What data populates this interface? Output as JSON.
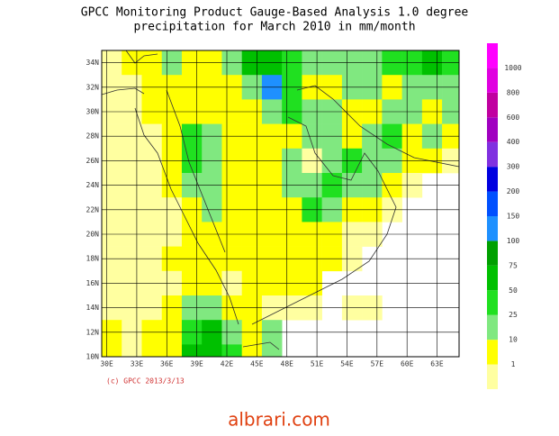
{
  "chart_data": {
    "type": "heatmap",
    "title": "GPCC Monitoring Product Gauge-Based Analysis 1.0 degree",
    "subtitle": "precipitation for March  2010 in mm/month",
    "copyright": "(c) GPCC 2013/3/13",
    "watermark": "albrari.com",
    "xlim": [
      29.5,
      65.2
    ],
    "ylim": [
      10,
      35
    ],
    "xticks": [
      {
        "value": 30,
        "label": "30E"
      },
      {
        "value": 33,
        "label": "33E"
      },
      {
        "value": 36,
        "label": "36E"
      },
      {
        "value": 39,
        "label": "39E"
      },
      {
        "value": 42,
        "label": "42E"
      },
      {
        "value": 45,
        "label": "45E"
      },
      {
        "value": 48,
        "label": "48E"
      },
      {
        "value": 51,
        "label": "51E"
      },
      {
        "value": 54,
        "label": "54E"
      },
      {
        "value": 57,
        "label": "57E"
      },
      {
        "value": 60,
        "label": "60E"
      },
      {
        "value": 63,
        "label": "63E"
      }
    ],
    "yticks": [
      {
        "value": 10,
        "label": "10N"
      },
      {
        "value": 12,
        "label": "12N"
      },
      {
        "value": 14,
        "label": "14N"
      },
      {
        "value": 16,
        "label": "16N"
      },
      {
        "value": 18,
        "label": "18N"
      },
      {
        "value": 20,
        "label": "20N"
      },
      {
        "value": 22,
        "label": "22N"
      },
      {
        "value": 24,
        "label": "24N"
      },
      {
        "value": 26,
        "label": "26N"
      },
      {
        "value": 28,
        "label": "28N"
      },
      {
        "value": 30,
        "label": "30N"
      },
      {
        "value": 32,
        "label": "32N"
      },
      {
        "value": 34,
        "label": "34N"
      }
    ],
    "grid": true,
    "lon_bins": [
      29.5,
      31.5,
      33.5,
      35.5,
      37.5,
      39.5,
      41.5,
      43.5,
      45.5,
      47.5,
      49.5,
      51.5,
      53.5,
      55.5,
      57.5,
      59.5,
      61.5,
      63.5,
      65.5
    ],
    "lat_bins": [
      35,
      33,
      31,
      29,
      27,
      25,
      23,
      21,
      19,
      17,
      15,
      13,
      11,
      9
    ],
    "z": [
      [
        0.5,
        5,
        5,
        15,
        5,
        5,
        15,
        60,
        60,
        40,
        15,
        15,
        20,
        15,
        40,
        40,
        60,
        30
      ],
      [
        0.5,
        0.5,
        5,
        5,
        5,
        5,
        5,
        15,
        120,
        40,
        5,
        5,
        15,
        15,
        5,
        15,
        15,
        15
      ],
      [
        0.5,
        0.5,
        5,
        5,
        5,
        5,
        5,
        5,
        15,
        40,
        15,
        15,
        5,
        5,
        15,
        15,
        5,
        15
      ],
      [
        0.5,
        0.5,
        0.5,
        5,
        40,
        15,
        5,
        5,
        5,
        5,
        15,
        15,
        5,
        15,
        40,
        5,
        15,
        5
      ],
      [
        0.5,
        0.5,
        0.5,
        5,
        40,
        15,
        5,
        5,
        5,
        15,
        0,
        15,
        40,
        15,
        15,
        5,
        5,
        0.5
      ],
      [
        0.5,
        0.5,
        0.5,
        5,
        15,
        15,
        5,
        5,
        5,
        15,
        15,
        40,
        15,
        15,
        5,
        0.5,
        null,
        null
      ],
      [
        0.5,
        0.5,
        0.5,
        0.5,
        5,
        15,
        5,
        5,
        5,
        5,
        40,
        15,
        5,
        5,
        0.5,
        null,
        null,
        null
      ],
      [
        0.5,
        0.5,
        0.5,
        0.5,
        5,
        5,
        5,
        5,
        5,
        5,
        5,
        5,
        0.5,
        0.5,
        null,
        null,
        null,
        null
      ],
      [
        0.5,
        0.5,
        0.5,
        5,
        5,
        5,
        5,
        5,
        5,
        5,
        5,
        5,
        0.5,
        null,
        null,
        null,
        null,
        null
      ],
      [
        0.5,
        0.5,
        0.5,
        0.5,
        5,
        5,
        0.5,
        5,
        5,
        5,
        5,
        null,
        null,
        null,
        null,
        null,
        null,
        null
      ],
      [
        0.5,
        0.5,
        0.5,
        5,
        15,
        15,
        5,
        5,
        0.5,
        0.5,
        0.5,
        null,
        0.5,
        0.5,
        null,
        null,
        null,
        null
      ],
      [
        5,
        0.5,
        5,
        5,
        40,
        60,
        15,
        5,
        15,
        null,
        null,
        null,
        null,
        null,
        null,
        null,
        null,
        null
      ],
      [
        5,
        0.5,
        5,
        5,
        60,
        60,
        40,
        5,
        15,
        null,
        null,
        null,
        null,
        null,
        null,
        null,
        null,
        null
      ]
    ],
    "levels": [
      1,
      10,
      25,
      50,
      75,
      100,
      150,
      200,
      300,
      400,
      600,
      800,
      1000
    ],
    "colors": [
      "#ffffa0",
      "#ffff00",
      "#80e880",
      "#20e020",
      "#00c000",
      "#00a000",
      "#1e90ff",
      "#0050ff",
      "#0000e0",
      "#8030e0",
      "#a000c0",
      "#c000a0",
      "#e000e0",
      "#ff00ff"
    ]
  }
}
